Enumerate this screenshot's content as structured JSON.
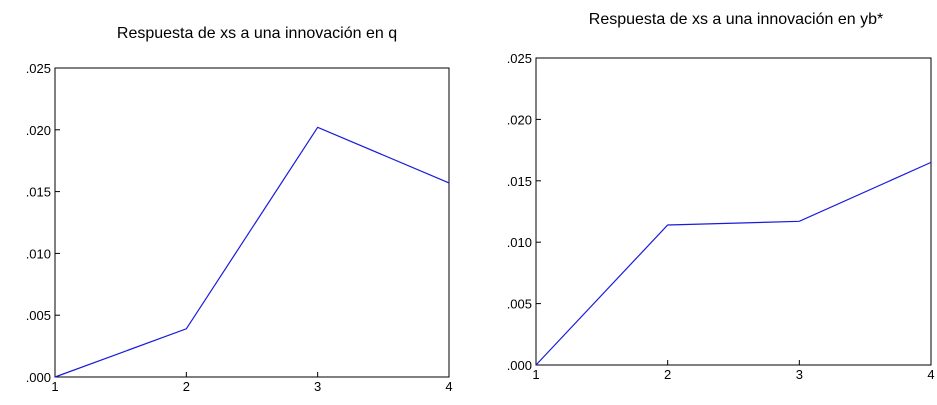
{
  "chart_data": [
    {
      "type": "line",
      "title": "Respuesta de xs a una innovación en q",
      "x": [
        1,
        2,
        3,
        4
      ],
      "xticks": [
        "1",
        "2",
        "3",
        "4"
      ],
      "yticks": [
        ".000",
        ".005",
        ".010",
        ".015",
        ".020",
        ".025"
      ],
      "ylim": [
        0,
        0.025
      ],
      "xlim": [
        1,
        4
      ],
      "grid": false,
      "series": [
        {
          "values": [
            0.0,
            0.0039,
            0.0202,
            0.0157
          ],
          "color": "#1a1adf"
        }
      ]
    },
    {
      "type": "line",
      "title": "Respuesta de xs a una innovación en yb*",
      "x": [
        1,
        2,
        3,
        4
      ],
      "xticks": [
        "1",
        "2",
        "3",
        "4"
      ],
      "yticks": [
        ".000",
        ".005",
        ".010",
        ".015",
        ".020",
        ".025"
      ],
      "ylim": [
        0,
        0.025
      ],
      "xlim": [
        1,
        4
      ],
      "grid": false,
      "series": [
        {
          "values": [
            0.0,
            0.0114,
            0.0117,
            0.0165
          ],
          "color": "#1a1adf"
        }
      ]
    }
  ]
}
